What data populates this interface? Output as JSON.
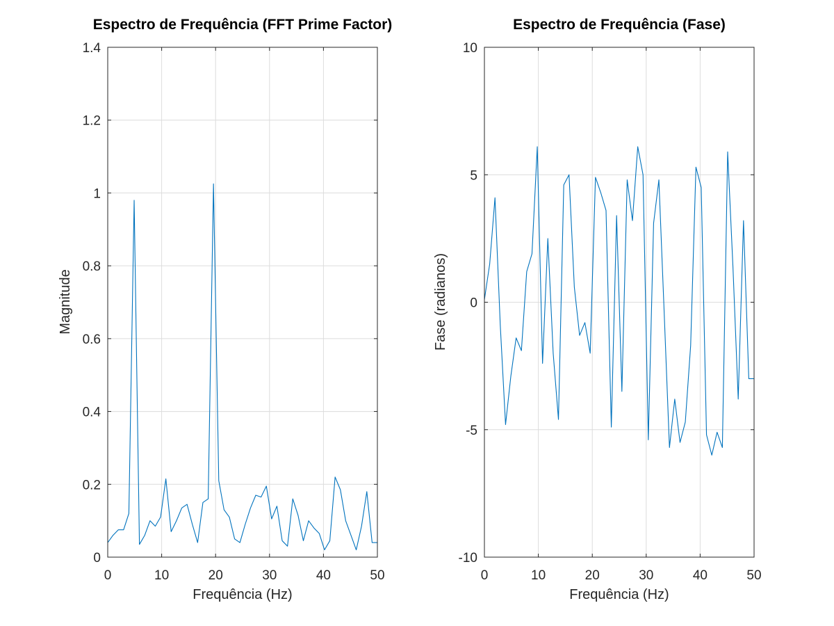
{
  "colors": {
    "series": "#0072bd",
    "axes": "#262626",
    "grid": "#dcdcdc",
    "background": "#ffffff"
  },
  "chart_data": [
    {
      "type": "line",
      "title": "Espectro de Frequência (FFT Prime Factor)",
      "xlabel": "Frequência (Hz)",
      "ylabel": "Magnitude",
      "xlim": [
        0,
        50
      ],
      "ylim": [
        0,
        1.4
      ],
      "xticks": [
        0,
        10,
        20,
        30,
        40,
        50
      ],
      "xtick_labels": [
        "0",
        "10",
        "20",
        "30",
        "40",
        "50"
      ],
      "yticks": [
        0,
        0.2,
        0.4,
        0.6,
        0.8,
        1,
        1.2,
        1.4
      ],
      "ytick_labels": [
        "0",
        "0.2",
        "0.4",
        "0.6",
        "0.8",
        "1",
        "1.2",
        "1.4"
      ],
      "grid": true,
      "series": [
        {
          "x": [
            0,
            0.98,
            1.96,
            2.94,
            3.92,
            4.9,
            5.88,
            6.86,
            7.84,
            8.82,
            9.8,
            10.78,
            11.76,
            12.75,
            13.73,
            14.71,
            15.69,
            16.67,
            17.65,
            18.63,
            19.61,
            20.59,
            21.57,
            22.55,
            23.53,
            24.51,
            25.49,
            26.47,
            27.45,
            28.43,
            29.41,
            30.39,
            31.37,
            32.35,
            33.33,
            34.31,
            35.29,
            36.27,
            37.25,
            38.24,
            39.22,
            40.2,
            41.18,
            42.16,
            43.14,
            44.12,
            45.1,
            46.08,
            47.06,
            48.04,
            49.02,
            50
          ],
          "values": [
            0.04,
            0.06,
            0.075,
            0.075,
            0.12,
            0.98,
            0.035,
            0.06,
            0.1,
            0.085,
            0.11,
            0.215,
            0.07,
            0.1,
            0.135,
            0.145,
            0.09,
            0.04,
            0.15,
            0.16,
            1.025,
            0.21,
            0.13,
            0.11,
            0.05,
            0.04,
            0.09,
            0.135,
            0.17,
            0.165,
            0.195,
            0.105,
            0.14,
            0.045,
            0.03,
            0.16,
            0.115,
            0.045,
            0.1,
            0.08,
            0.065,
            0.02,
            0.045,
            0.22,
            0.185,
            0.1,
            0.06,
            0.02,
            0.085,
            0.18,
            0.04,
            0.04
          ]
        }
      ]
    },
    {
      "type": "line",
      "title": "Espectro de Frequência (Fase)",
      "xlabel": "Frequência (Hz)",
      "ylabel": "Fase (radianos)",
      "xlim": [
        0,
        50
      ],
      "ylim": [
        -10,
        10
      ],
      "xticks": [
        0,
        10,
        20,
        30,
        40,
        50
      ],
      "xtick_labels": [
        "0",
        "10",
        "20",
        "30",
        "40",
        "50"
      ],
      "yticks": [
        -10,
        -5,
        0,
        5,
        10
      ],
      "ytick_labels": [
        "-10",
        "-5",
        "0",
        "5",
        "10"
      ],
      "grid": true,
      "series": [
        {
          "x": [
            0,
            0.98,
            1.96,
            2.94,
            3.92,
            4.9,
            5.88,
            6.86,
            7.84,
            8.82,
            9.8,
            10.78,
            11.76,
            12.75,
            13.73,
            14.71,
            15.69,
            16.67,
            17.65,
            18.63,
            19.61,
            20.59,
            21.57,
            22.55,
            23.53,
            24.51,
            25.49,
            26.47,
            27.45,
            28.43,
            29.41,
            30.39,
            31.37,
            32.35,
            33.33,
            34.31,
            35.29,
            36.27,
            37.25,
            38.24,
            39.22,
            40.2,
            41.18,
            42.16,
            43.14,
            44.12,
            45.1,
            46.08,
            47.06,
            48.04,
            49.02,
            50
          ],
          "values": [
            0.1,
            1.5,
            4.1,
            -0.9,
            -4.8,
            -2.9,
            -1.4,
            -1.9,
            1.2,
            1.9,
            6.1,
            -2.4,
            2.5,
            -2.0,
            -4.6,
            4.6,
            5.0,
            0.6,
            -1.3,
            -0.8,
            -2.0,
            4.9,
            4.3,
            3.6,
            -4.9,
            3.4,
            -3.5,
            4.8,
            3.2,
            6.1,
            5.0,
            -5.4,
            3.1,
            4.8,
            -0.4,
            -5.7,
            -3.8,
            -5.5,
            -4.7,
            -1.7,
            5.3,
            4.5,
            -5.2,
            -6.0,
            -5.1,
            -5.7,
            5.9,
            1.4,
            -3.8,
            3.2,
            -3.0,
            -3.0
          ]
        }
      ]
    }
  ]
}
